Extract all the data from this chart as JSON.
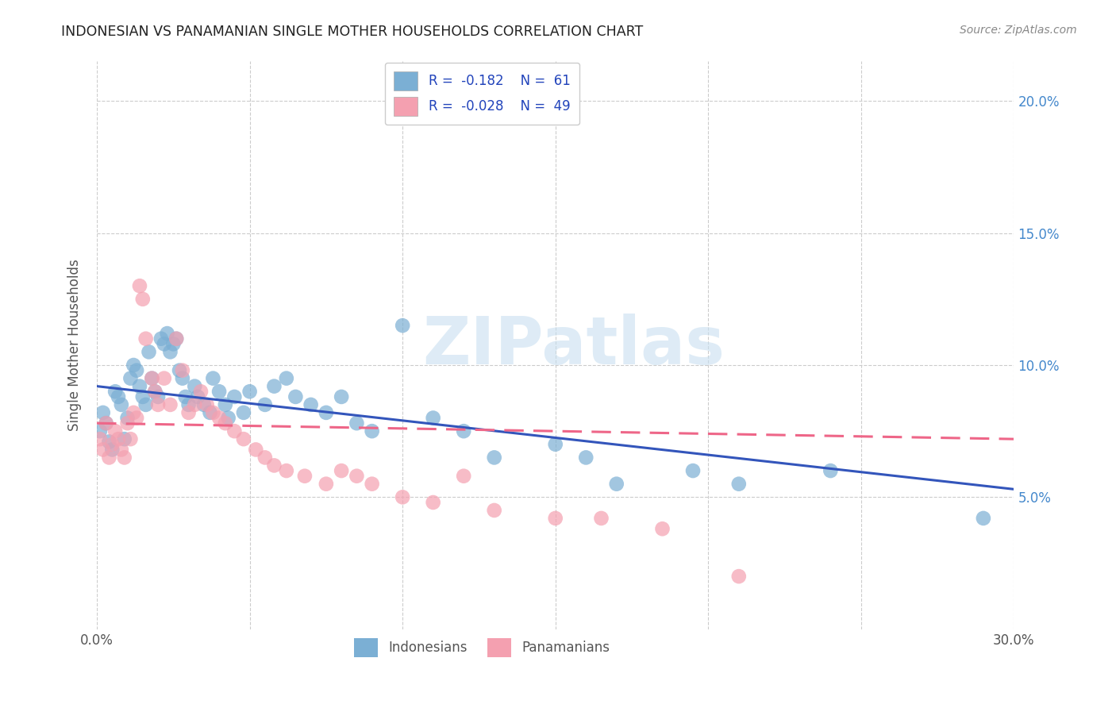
{
  "title": "INDONESIAN VS PANAMANIAN SINGLE MOTHER HOUSEHOLDS CORRELATION CHART",
  "source": "Source: ZipAtlas.com",
  "ylabel": "Single Mother Households",
  "xlim": [
    0.0,
    0.3
  ],
  "ylim": [
    0.0,
    0.215
  ],
  "watermark": "ZIPatlas",
  "indonesian_color": "#7bafd4",
  "panamanian_color": "#f4a0b0",
  "line_blue": "#3355bb",
  "line_pink": "#ee6688",
  "indonesian_scatter_x": [
    0.001,
    0.002,
    0.003,
    0.004,
    0.005,
    0.006,
    0.007,
    0.008,
    0.009,
    0.01,
    0.011,
    0.012,
    0.013,
    0.014,
    0.015,
    0.016,
    0.017,
    0.018,
    0.019,
    0.02,
    0.021,
    0.022,
    0.023,
    0.024,
    0.025,
    0.026,
    0.027,
    0.028,
    0.029,
    0.03,
    0.032,
    0.033,
    0.035,
    0.037,
    0.038,
    0.04,
    0.042,
    0.043,
    0.045,
    0.048,
    0.05,
    0.055,
    0.058,
    0.062,
    0.065,
    0.07,
    0.075,
    0.08,
    0.085,
    0.09,
    0.1,
    0.11,
    0.12,
    0.13,
    0.15,
    0.16,
    0.17,
    0.195,
    0.21,
    0.24,
    0.29
  ],
  "indonesian_scatter_y": [
    0.075,
    0.082,
    0.078,
    0.071,
    0.068,
    0.09,
    0.088,
    0.085,
    0.072,
    0.08,
    0.095,
    0.1,
    0.098,
    0.092,
    0.088,
    0.085,
    0.105,
    0.095,
    0.09,
    0.088,
    0.11,
    0.108,
    0.112,
    0.105,
    0.108,
    0.11,
    0.098,
    0.095,
    0.088,
    0.085,
    0.092,
    0.088,
    0.085,
    0.082,
    0.095,
    0.09,
    0.085,
    0.08,
    0.088,
    0.082,
    0.09,
    0.085,
    0.092,
    0.095,
    0.088,
    0.085,
    0.082,
    0.088,
    0.078,
    0.075,
    0.115,
    0.08,
    0.075,
    0.065,
    0.07,
    0.065,
    0.055,
    0.06,
    0.055,
    0.06,
    0.042
  ],
  "panamanian_scatter_x": [
    0.001,
    0.002,
    0.003,
    0.004,
    0.005,
    0.006,
    0.007,
    0.008,
    0.009,
    0.01,
    0.011,
    0.012,
    0.013,
    0.014,
    0.015,
    0.016,
    0.018,
    0.019,
    0.02,
    0.022,
    0.024,
    0.026,
    0.028,
    0.03,
    0.032,
    0.034,
    0.036,
    0.038,
    0.04,
    0.042,
    0.045,
    0.048,
    0.052,
    0.055,
    0.058,
    0.062,
    0.068,
    0.075,
    0.08,
    0.085,
    0.09,
    0.1,
    0.11,
    0.12,
    0.13,
    0.15,
    0.165,
    0.185,
    0.21
  ],
  "panamanian_scatter_y": [
    0.072,
    0.068,
    0.078,
    0.065,
    0.07,
    0.075,
    0.072,
    0.068,
    0.065,
    0.078,
    0.072,
    0.082,
    0.08,
    0.13,
    0.125,
    0.11,
    0.095,
    0.09,
    0.085,
    0.095,
    0.085,
    0.11,
    0.098,
    0.082,
    0.085,
    0.09,
    0.085,
    0.082,
    0.08,
    0.078,
    0.075,
    0.072,
    0.068,
    0.065,
    0.062,
    0.06,
    0.058,
    0.055,
    0.06,
    0.058,
    0.055,
    0.05,
    0.048,
    0.058,
    0.045,
    0.042,
    0.042,
    0.038,
    0.02
  ],
  "blue_line_x": [
    0.0,
    0.3
  ],
  "blue_line_y": [
    0.092,
    0.053
  ],
  "pink_line_x": [
    0.0,
    0.3
  ],
  "pink_line_y": [
    0.078,
    0.072
  ]
}
